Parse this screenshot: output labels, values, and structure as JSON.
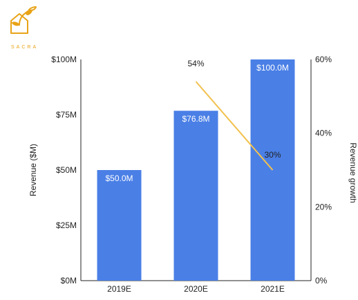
{
  "logo": {
    "text": "SACRA",
    "icon": "sacra-house-sprout-logo",
    "color": "#e8a317"
  },
  "colors": {
    "bar": "#4a7fe6",
    "line": "#f2c14e",
    "axis": "#222222"
  },
  "chart_data": {
    "type": "bar",
    "categories": [
      "2019E",
      "2020E",
      "2021E"
    ],
    "series": [
      {
        "values": [
          50.0,
          76.8,
          100.0
        ],
        "labels": [
          "$50.0M",
          "$76.8M",
          "$100.0M"
        ],
        "axis": "left"
      },
      {
        "type": "line",
        "values": [
          null,
          54,
          30
        ],
        "labels": [
          "",
          "54%",
          "30%"
        ],
        "axis": "right"
      }
    ],
    "ylabel": "Revenue ($M)",
    "y2label": "Revenue growth",
    "ylim": [
      0,
      100
    ],
    "y2lim": [
      0,
      60
    ],
    "yticks": [
      "$0M",
      "$25M",
      "$50M",
      "$75M",
      "$100M"
    ],
    "y2ticks": [
      "0%",
      "20%",
      "40%",
      "60%"
    ],
    "grid": false
  }
}
